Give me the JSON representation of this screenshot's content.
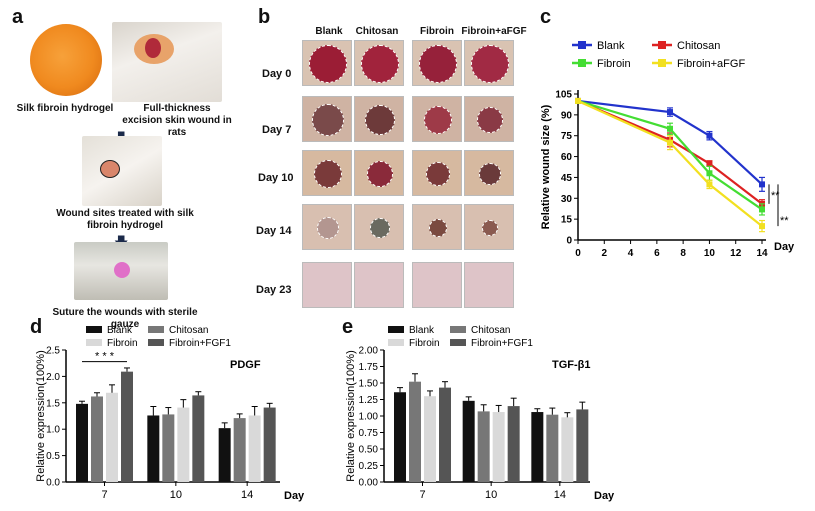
{
  "panel_a": {
    "label": "a",
    "captions": {
      "hydrogel": "Silk fibroin hydrogel",
      "wound": "Full-thickness excision skin wound in rats",
      "treated": "Wound sites treated with silk fibroin hydrogel",
      "suture": "Suture the wounds with sterile gauze"
    }
  },
  "panel_b": {
    "label": "b",
    "columns": [
      "Blank",
      "Chitosan",
      "Fibroin",
      "Fibroin+aFGF"
    ],
    "rows": [
      "Day 0",
      "Day 7",
      "Day 10",
      "Day 14",
      "Day 23"
    ]
  },
  "chart_data": [
    {
      "id": "c",
      "panel_label": "c",
      "type": "line",
      "ylabel": "Relative wound size (%)",
      "xlabel": "Day",
      "x": [
        0,
        7,
        10,
        14
      ],
      "xticks": [
        0,
        2,
        4,
        6,
        8,
        10,
        12,
        14
      ],
      "yticks": [
        0,
        15,
        30,
        45,
        60,
        75,
        90,
        105
      ],
      "xlim": [
        0,
        14
      ],
      "ylim": [
        0,
        105
      ],
      "legend_position": "top",
      "significance": [
        "**",
        "**"
      ],
      "series": [
        {
          "name": "Blank",
          "color": "#2233cc",
          "values": [
            100,
            92,
            75,
            40
          ],
          "err": [
            0,
            3,
            3,
            5
          ]
        },
        {
          "name": "Chitosan",
          "color": "#dd2222",
          "values": [
            100,
            72,
            55,
            26
          ],
          "err": [
            0,
            5,
            2,
            3
          ]
        },
        {
          "name": "Fibroin",
          "color": "#44dd33",
          "values": [
            100,
            80,
            48,
            22
          ],
          "err": [
            0,
            4,
            5,
            4
          ]
        },
        {
          "name": "Fibroin+aFGF",
          "color": "#f2e020",
          "values": [
            100,
            70,
            40,
            10
          ],
          "err": [
            0,
            5,
            3,
            4
          ]
        }
      ]
    },
    {
      "id": "d",
      "panel_label": "d",
      "type": "bar",
      "title": "PDGF",
      "ylabel": "Relative expression(100%)",
      "xlabel": "Day",
      "categories": [
        "7",
        "10",
        "14"
      ],
      "yticks": [
        "0.0",
        "0.5",
        "1.0",
        "1.5",
        "2.0",
        "2.5"
      ],
      "ylim": [
        0,
        2.5
      ],
      "legend_position": "top",
      "significance": "* * *",
      "series": [
        {
          "name": "Blank",
          "color": "#111111",
          "values": [
            1.48,
            1.26,
            1.02
          ],
          "err": [
            0.05,
            0.17,
            0.1
          ]
        },
        {
          "name": "Chitosan",
          "color": "#777777",
          "values": [
            1.62,
            1.28,
            1.21
          ],
          "err": [
            0.07,
            0.13,
            0.08
          ]
        },
        {
          "name": "Fibroin",
          "color": "#d9d9d9",
          "values": [
            1.69,
            1.41,
            1.26
          ],
          "err": [
            0.15,
            0.15,
            0.17
          ]
        },
        {
          "name": "Fibroin+FGF1",
          "color": "#555555",
          "values": [
            2.09,
            1.64,
            1.41
          ],
          "err": [
            0.07,
            0.07,
            0.08
          ]
        }
      ]
    },
    {
      "id": "e",
      "panel_label": "e",
      "type": "bar",
      "title": "TGF-β1",
      "ylabel": "Relative expression(100%)",
      "xlabel": "Day",
      "categories": [
        "7",
        "10",
        "14"
      ],
      "yticks": [
        "0.00",
        "0.25",
        "0.50",
        "0.75",
        "1.00",
        "1.25",
        "1.50",
        "1.75",
        "2.00"
      ],
      "ylim": [
        0,
        2.0
      ],
      "legend_position": "top",
      "series": [
        {
          "name": "Blank",
          "color": "#111111",
          "values": [
            1.36,
            1.23,
            1.06
          ],
          "err": [
            0.07,
            0.06,
            0.05
          ]
        },
        {
          "name": "Chitosan",
          "color": "#777777",
          "values": [
            1.52,
            1.07,
            1.02
          ],
          "err": [
            0.12,
            0.1,
            0.1
          ]
        },
        {
          "name": "Fibroin",
          "color": "#d9d9d9",
          "values": [
            1.3,
            1.06,
            0.98
          ],
          "err": [
            0.08,
            0.1,
            0.07
          ]
        },
        {
          "name": "Fibroin+FGF1",
          "color": "#555555",
          "values": [
            1.43,
            1.15,
            1.1
          ],
          "err": [
            0.09,
            0.12,
            0.11
          ]
        }
      ]
    }
  ]
}
